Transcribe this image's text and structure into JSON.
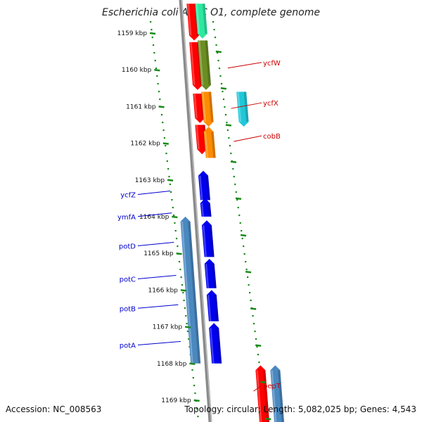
{
  "title": "Escherichia coli APEC O1, complete genome",
  "footer": {
    "accession": "Accession: NC_008563",
    "summary": "Topology: circular; Length: 5,082,025 bp; Genes: 4,543"
  },
  "ticks": [
    {
      "label": "1159 kbp",
      "kbp": 1159
    },
    {
      "label": "1160 kbp",
      "kbp": 1160
    },
    {
      "label": "1161 kbp",
      "kbp": 1161
    },
    {
      "label": "1162 kbp",
      "kbp": 1162
    },
    {
      "label": "1163 kbp",
      "kbp": 1163
    },
    {
      "label": "1164 kbp",
      "kbp": 1164
    },
    {
      "label": "1165 kbp",
      "kbp": 1165
    },
    {
      "label": "1166 kbp",
      "kbp": 1166
    },
    {
      "label": "1167 kbp",
      "kbp": 1167
    },
    {
      "label": "1168 kbp",
      "kbp": 1168
    },
    {
      "label": "1169 kbp",
      "kbp": 1169
    }
  ],
  "gene_labels": [
    {
      "name": "ycfW",
      "side": "right",
      "color": "#cc0000",
      "kbp": 1159.8
    },
    {
      "name": "ycfX",
      "side": "right",
      "color": "#cc0000",
      "kbp": 1160.9
    },
    {
      "name": "cobB",
      "side": "right",
      "color": "#cc0000",
      "kbp": 1161.8
    },
    {
      "name": "ycfZ",
      "side": "left",
      "color": "#0000cc",
      "kbp": 1163.3
    },
    {
      "name": "ymfA",
      "side": "left",
      "color": "#0000cc",
      "kbp": 1163.9
    },
    {
      "name": "potD",
      "side": "left",
      "color": "#0000cc",
      "kbp": 1164.7
    },
    {
      "name": "potC",
      "side": "left",
      "color": "#0000cc",
      "kbp": 1165.6
    },
    {
      "name": "potB",
      "side": "left",
      "color": "#0000cc",
      "kbp": 1166.4
    },
    {
      "name": "potA",
      "side": "left",
      "color": "#0000cc",
      "kbp": 1167.4
    },
    {
      "name": "pepT",
      "side": "right",
      "color": "#cc0000",
      "kbp": 1168.6
    }
  ],
  "features": [
    {
      "track": "r1",
      "start": 1158.2,
      "end": 1159.2,
      "color": "#ff0000",
      "strand": "-"
    },
    {
      "track": "r1",
      "start": 1159.25,
      "end": 1160.55,
      "color": "#ff0000",
      "strand": "-"
    },
    {
      "track": "r1",
      "start": 1160.65,
      "end": 1161.45,
      "color": "#ff0000",
      "strand": "-"
    },
    {
      "track": "r1",
      "start": 1161.5,
      "end": 1162.3,
      "color": "#ff0000",
      "strand": "-"
    },
    {
      "track": "r2",
      "start": 1158.2,
      "end": 1159.15,
      "color": "#2ee8a0",
      "strand": "-"
    },
    {
      "track": "r2",
      "start": 1159.2,
      "end": 1160.55,
      "color": "#6b8e23",
      "strand": "-"
    },
    {
      "track": "r2",
      "start": 1160.6,
      "end": 1161.55,
      "color": "#ff8c00",
      "strand": "-"
    },
    {
      "track": "r3",
      "start": 1160.6,
      "end": 1161.55,
      "color": "#1fc8d8",
      "strand": "-"
    },
    {
      "track": "r2",
      "start": 1161.55,
      "end": 1162.4,
      "color": "#ff8c00",
      "strand": "+"
    },
    {
      "track": "r1",
      "start": 1162.75,
      "end": 1163.55,
      "color": "#0000ee",
      "strand": "+"
    },
    {
      "track": "r1",
      "start": 1163.5,
      "end": 1164.0,
      "color": "#0000ee",
      "strand": "+"
    },
    {
      "track": "r1",
      "start": 1164.1,
      "end": 1165.1,
      "color": "#0000ee",
      "strand": "+"
    },
    {
      "track": "r1",
      "start": 1165.15,
      "end": 1165.95,
      "color": "#0000ee",
      "strand": "+"
    },
    {
      "track": "r1",
      "start": 1166.0,
      "end": 1166.85,
      "color": "#0000ee",
      "strand": "+"
    },
    {
      "track": "r1",
      "start": 1166.9,
      "end": 1168.0,
      "color": "#0000ee",
      "strand": "+"
    },
    {
      "track": "l1",
      "start": 1164.0,
      "end": 1168.0,
      "color": "#4a88c0",
      "strand": "+"
    },
    {
      "track": "r3",
      "start": 1168.05,
      "end": 1169.7,
      "color": "#ff0000",
      "strand": "+"
    },
    {
      "track": "r4",
      "start": 1168.05,
      "end": 1169.7,
      "color": "#4a88c0",
      "strand": "+"
    }
  ]
}
